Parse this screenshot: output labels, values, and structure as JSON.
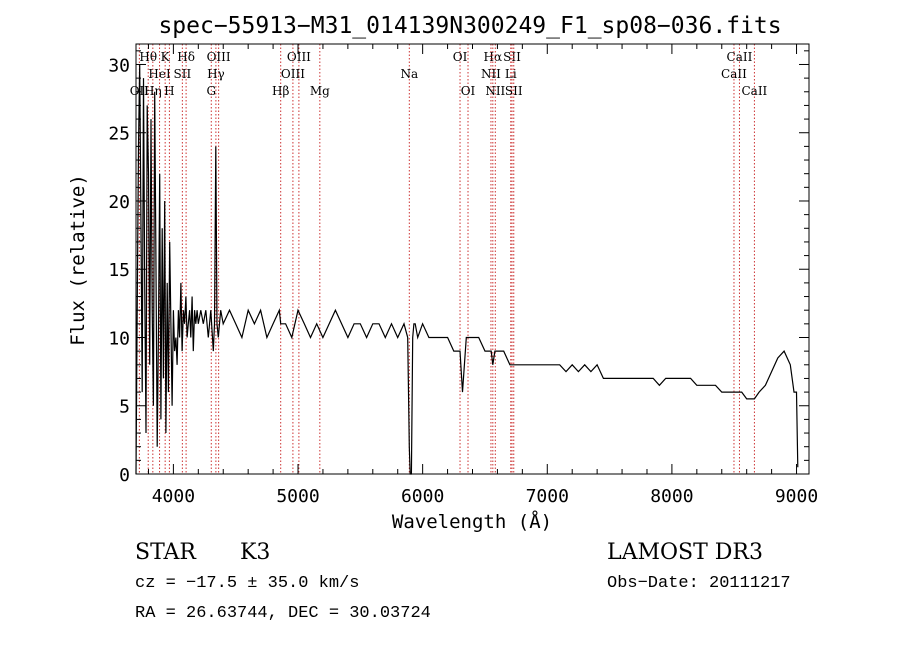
{
  "chart_data": {
    "type": "line",
    "title": "spec−55913−M31_014139N300249_F1_sp08−036.fits",
    "xlabel": "Wavelength (Å)",
    "ylabel": "Flux (relative)",
    "xlim": [
      3700,
      9100
    ],
    "ylim": [
      0,
      31.5
    ],
    "xticks": [
      4000,
      5000,
      6000,
      7000,
      8000,
      9000
    ],
    "xtick_labels": [
      "4000",
      "5000",
      "6000",
      "7000",
      "8000",
      "9000"
    ],
    "yticks": [
      0,
      5,
      10,
      15,
      20,
      25,
      30
    ],
    "ytick_labels": [
      "0",
      "5",
      "10",
      "15",
      "20",
      "25",
      "30"
    ],
    "line_color": "#000000",
    "marker_color": "#cc3333",
    "series": [
      {
        "name": "flux",
        "x": [
          3700,
          3710,
          3720,
          3730,
          3740,
          3750,
          3760,
          3770,
          3780,
          3790,
          3800,
          3810,
          3820,
          3830,
          3840,
          3850,
          3860,
          3870,
          3880,
          3890,
          3900,
          3910,
          3920,
          3930,
          3940,
          3950,
          3960,
          3970,
          3980,
          3990,
          4000,
          4010,
          4020,
          4030,
          4040,
          4050,
          4060,
          4070,
          4080,
          4090,
          4100,
          4110,
          4120,
          4130,
          4140,
          4150,
          4160,
          4170,
          4180,
          4190,
          4200,
          4220,
          4240,
          4260,
          4280,
          4300,
          4320,
          4330,
          4340,
          4350,
          4360,
          4380,
          4400,
          4450,
          4500,
          4550,
          4600,
          4650,
          4700,
          4750,
          4800,
          4850,
          4861,
          4900,
          4950,
          5000,
          5050,
          5100,
          5150,
          5200,
          5250,
          5300,
          5350,
          5400,
          5450,
          5500,
          5550,
          5600,
          5650,
          5700,
          5750,
          5800,
          5850,
          5880,
          5893,
          5900,
          5910,
          5920,
          5930,
          5940,
          5960,
          6000,
          6050,
          6100,
          6150,
          6200,
          6250,
          6300,
          6320,
          6350,
          6400,
          6450,
          6500,
          6550,
          6563,
          6580,
          6600,
          6650,
          6700,
          6750,
          6800,
          6850,
          6900,
          6950,
          7000,
          7050,
          7100,
          7150,
          7200,
          7250,
          7300,
          7350,
          7400,
          7450,
          7500,
          7550,
          7600,
          7650,
          7700,
          7750,
          7800,
          7850,
          7900,
          7950,
          8000,
          8050,
          8100,
          8150,
          8200,
          8250,
          8300,
          8350,
          8400,
          8450,
          8500,
          8542,
          8560,
          8600,
          8662,
          8700,
          8750,
          8800,
          8850,
          8900,
          8950,
          8980,
          9000,
          9010
        ],
        "y": [
          0,
          12,
          24,
          30,
          18,
          6,
          29,
          14,
          3,
          27,
          22,
          8,
          26,
          12,
          5,
          28,
          16,
          2,
          10,
          22,
          4,
          18,
          7,
          20,
          3,
          14,
          6,
          17,
          11,
          5,
          12,
          9,
          10,
          8,
          12,
          10,
          14,
          9,
          12,
          11,
          13,
          10,
          11,
          12,
          10,
          13,
          9,
          12,
          11,
          12,
          11,
          12,
          11,
          12,
          10,
          12,
          9,
          11,
          24,
          11,
          10,
          12,
          11,
          12,
          11,
          10,
          12,
          11,
          12,
          10,
          11,
          12,
          11,
          11,
          10,
          12,
          11,
          10,
          11,
          10,
          11,
          12,
          11,
          10,
          11,
          11,
          10,
          11,
          11,
          10,
          11,
          10,
          11,
          10,
          2,
          0,
          0,
          10,
          11,
          11,
          10,
          11,
          10,
          10,
          10,
          10,
          9,
          9,
          6,
          10,
          10,
          10,
          9,
          9,
          8,
          9,
          9,
          9,
          8,
          8,
          8,
          8,
          8,
          8,
          8,
          8,
          8,
          7.5,
          8,
          7.5,
          8,
          7.5,
          8,
          7,
          7,
          7,
          7,
          7,
          7,
          7,
          7,
          7,
          6.5,
          7,
          7,
          7,
          7,
          7,
          6.5,
          6.5,
          6.5,
          6.5,
          6,
          6,
          6,
          6,
          6,
          5.5,
          5.5,
          6,
          6.5,
          7.5,
          8.5,
          9,
          8,
          6,
          6,
          0.5
        ]
      }
    ],
    "line_markers": [
      {
        "label": "OII",
        "wavelength": 3727,
        "row": 3
      },
      {
        "label": "Hθ",
        "wavelength": 3798,
        "row": 1
      },
      {
        "label": "Hη",
        "wavelength": 3835,
        "row": 3
      },
      {
        "label": "HeI",
        "wavelength": 3889,
        "row": 2
      },
      {
        "label": "K",
        "wavelength": 3934,
        "row": 1
      },
      {
        "label": "H",
        "wavelength": 3968,
        "row": 3
      },
      {
        "label": "Hδ",
        "wavelength": 4102,
        "row": 1
      },
      {
        "label": "SII",
        "wavelength": 4072,
        "row": 2
      },
      {
        "label": "G",
        "wavelength": 4304,
        "row": 3
      },
      {
        "label": "OIII",
        "wavelength": 4363,
        "row": 1
      },
      {
        "label": "Hγ",
        "wavelength": 4341,
        "row": 2
      },
      {
        "label": "Hβ",
        "wavelength": 4861,
        "row": 3
      },
      {
        "label": "OIII",
        "wavelength": 5007,
        "row": 1
      },
      {
        "label": "OIII",
        "wavelength": 4959,
        "row": 2
      },
      {
        "label": "Mg",
        "wavelength": 5175,
        "row": 3
      },
      {
        "label": "Na",
        "wavelength": 5893,
        "row": 2
      },
      {
        "label": "OI",
        "wavelength": 6300,
        "row": 1
      },
      {
        "label": "OI",
        "wavelength": 6364,
        "row": 3
      },
      {
        "label": "Hα",
        "wavelength": 6563,
        "row": 1
      },
      {
        "label": "NII",
        "wavelength": 6548,
        "row": 2
      },
      {
        "label": "NII",
        "wavelength": 6583,
        "row": 3
      },
      {
        "label": "SII",
        "wavelength": 6717,
        "row": 1
      },
      {
        "label": "Li",
        "wavelength": 6707,
        "row": 2
      },
      {
        "label": "SII",
        "wavelength": 6731,
        "row": 3
      },
      {
        "label": "CaII",
        "wavelength": 8542,
        "row": 1
      },
      {
        "label": "CaII",
        "wavelength": 8498,
        "row": 2
      },
      {
        "label": "CaII",
        "wavelength": 8662,
        "row": 3
      }
    ]
  },
  "info": {
    "class": "STAR",
    "subclass": "K3",
    "survey": "LAMOST DR3",
    "cz": "cz = −17.5 ± 35.0 km/s",
    "obs_date": "Obs−Date: 20111217",
    "coords": "RA =  26.63744, DEC =  30.03724"
  }
}
